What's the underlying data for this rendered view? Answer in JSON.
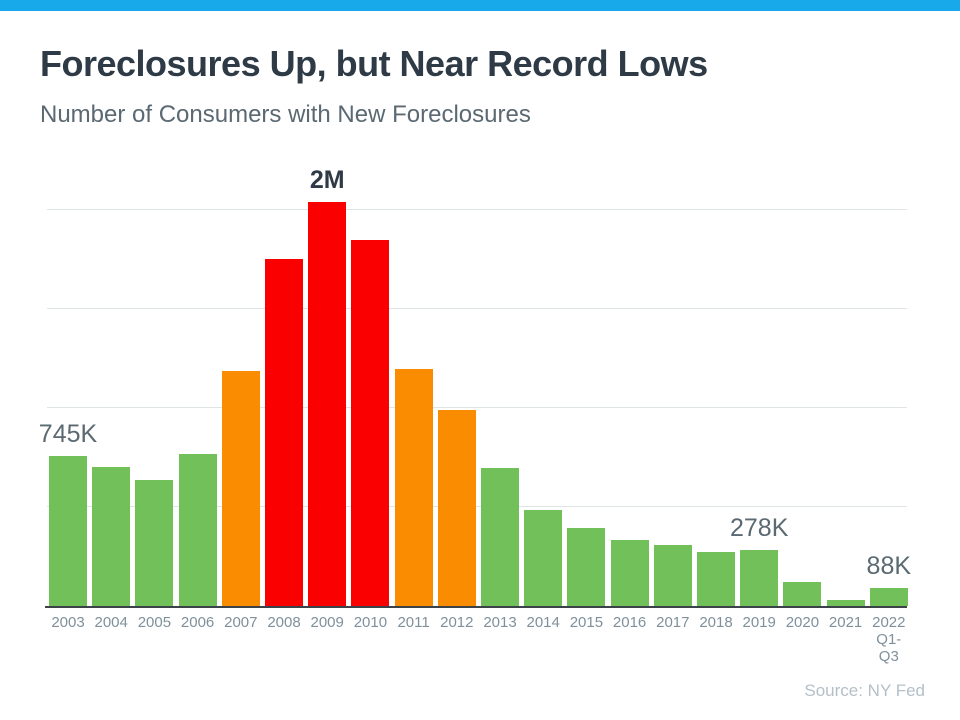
{
  "header": {
    "title": "Foreclosures Up, but Near Record Lows",
    "subtitle": "Number of Consumers with New Foreclosures"
  },
  "source_note": "Source: NY Fed",
  "accent_color": "#18a9ea",
  "chart_data": {
    "type": "bar",
    "title": "Foreclosures Up, but Near Record Lows",
    "subtitle": "Number of Consumers with New Foreclosures",
    "unit_note": "values in thousands of consumers (K)",
    "categories": [
      "2003",
      "2004",
      "2005",
      "2006",
      "2007",
      "2008",
      "2009",
      "2010",
      "2011",
      "2012",
      "2013",
      "2014",
      "2015",
      "2016",
      "2017",
      "2018",
      "2019",
      "2020",
      "2021",
      "2022\nQ1-Q3"
    ],
    "values_thousands": [
      745,
      690,
      625,
      750,
      1165,
      1720,
      2000,
      1810,
      1175,
      970,
      685,
      475,
      385,
      325,
      300,
      268,
      278,
      120,
      32,
      88
    ],
    "bar_colors": [
      "green",
      "green",
      "green",
      "green",
      "orange",
      "red",
      "red",
      "red",
      "orange",
      "orange",
      "green",
      "green",
      "green",
      "green",
      "green",
      "green",
      "green",
      "green",
      "green",
      "green"
    ],
    "palette": {
      "green": "#72c05a",
      "orange": "#f98c00",
      "red": "#fa0000"
    },
    "data_labels": [
      {
        "index": 0,
        "text": "745K",
        "emphasis": false
      },
      {
        "index": 6,
        "text": "2M",
        "emphasis": true
      },
      {
        "index": 16,
        "text": "278K",
        "emphasis": false
      },
      {
        "index": 19,
        "text": "88K",
        "emphasis": false
      }
    ],
    "ylim_thousands": [
      0,
      2100
    ],
    "gridlines_thousands": [
      500,
      1000,
      1500,
      2000
    ],
    "grid": true,
    "legend": "none",
    "y_axis_tick_labels": "none",
    "x_axis_label": "",
    "y_axis_label": "",
    "source": "Source: NY Fed"
  }
}
